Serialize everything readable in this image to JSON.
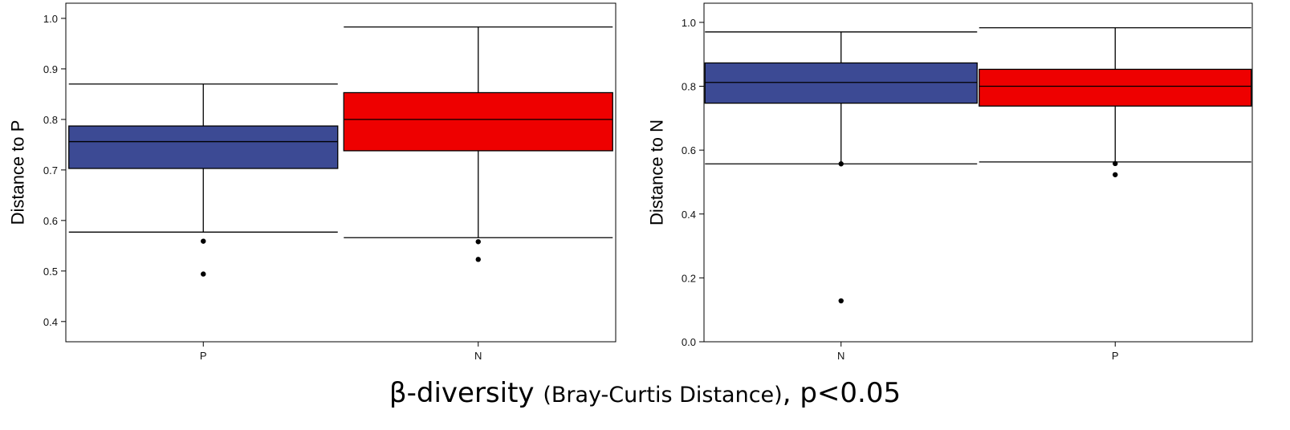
{
  "colors": {
    "group_blue": "#3c4a94",
    "group_red": "#ee0000",
    "line": "#000000"
  },
  "caption": {
    "greek": "β-diversity ",
    "parenthetical": "(Bray-Curtis Distance)",
    "suffix": ", p<0.05"
  },
  "chart_data": [
    {
      "type": "box",
      "ylabel": "Distance to P",
      "ylim": [
        0.36,
        1.03
      ],
      "yticks": [
        0.4,
        0.5,
        0.6,
        0.7,
        0.8,
        0.9,
        1.0
      ],
      "ytick_labels": [
        "0.4",
        "0.5",
        "0.6",
        "0.7",
        "0.8",
        "0.9",
        "1.0"
      ],
      "categories": [
        "P",
        "N"
      ],
      "boxes": [
        {
          "category": "P",
          "color": "#3c4a94",
          "whisker_low": 0.577,
          "q1": 0.703,
          "median": 0.756,
          "q3": 0.787,
          "whisker_high": 0.87,
          "outliers": [
            0.559,
            0.494
          ]
        },
        {
          "category": "N",
          "color": "#ee0000",
          "whisker_low": 0.566,
          "q1": 0.738,
          "median": 0.8,
          "q3": 0.853,
          "whisker_high": 0.983,
          "outliers": [
            0.558,
            0.523
          ]
        }
      ]
    },
    {
      "type": "box",
      "ylabel": "Distance to N",
      "ylim": [
        0.0,
        1.06
      ],
      "yticks": [
        0.0,
        0.2,
        0.4,
        0.6,
        0.8,
        1.0
      ],
      "ytick_labels": [
        "0.0",
        "0.2",
        "0.4",
        "0.6",
        "0.8",
        "1.0"
      ],
      "categories": [
        "N",
        "P"
      ],
      "boxes": [
        {
          "category": "N",
          "color": "#3c4a94",
          "whisker_low": 0.557,
          "q1": 0.747,
          "median": 0.812,
          "q3": 0.873,
          "whisker_high": 0.97,
          "outliers": [
            0.557,
            0.128
          ]
        },
        {
          "category": "P",
          "color": "#ee0000",
          "whisker_low": 0.563,
          "q1": 0.738,
          "median": 0.8,
          "q3": 0.853,
          "whisker_high": 0.983,
          "outliers": [
            0.558,
            0.523
          ]
        }
      ]
    }
  ]
}
